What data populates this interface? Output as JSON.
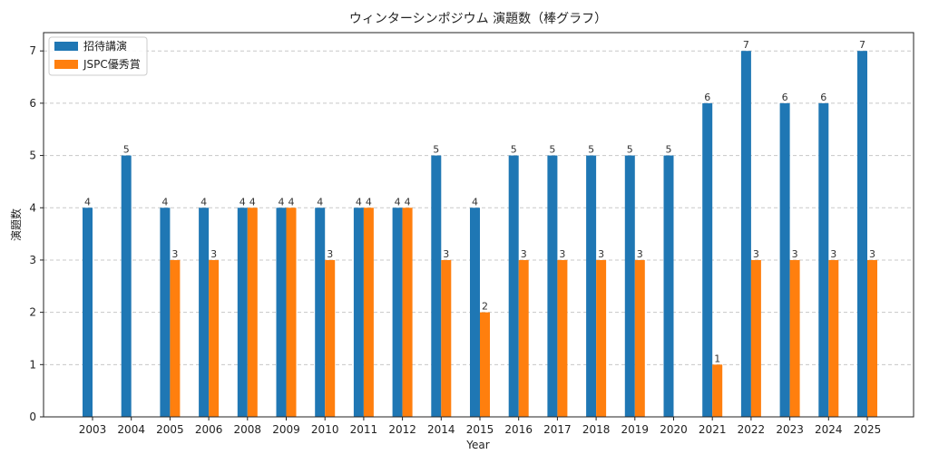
{
  "chart_data": {
    "type": "bar",
    "title": "ウィンターシンポジウム 演題数（棒グラフ）",
    "xlabel": "Year",
    "ylabel": "演題数",
    "ylim": [
      0,
      7.35
    ],
    "yticks": [
      "0",
      "1",
      "2",
      "3",
      "4",
      "5",
      "6",
      "7"
    ],
    "grid": true,
    "legend_position": "top-left",
    "categories": [
      "2003",
      "2004",
      "2005",
      "2006",
      "2008",
      "2009",
      "2010",
      "2011",
      "2012",
      "2014",
      "2015",
      "2016",
      "2017",
      "2018",
      "2019",
      "2020",
      "2021",
      "2022",
      "2023",
      "2024",
      "2025"
    ],
    "series": [
      {
        "name": "招待講演",
        "color": "#1f77b4",
        "values": [
          4,
          5,
          4,
          4,
          4,
          4,
          4,
          4,
          4,
          5,
          4,
          5,
          5,
          5,
          5,
          5,
          6,
          7,
          6,
          6,
          7
        ]
      },
      {
        "name": "JSPC優秀賞",
        "color": "#ff7f0e",
        "values": [
          null,
          null,
          3,
          3,
          4,
          4,
          3,
          4,
          4,
          3,
          2,
          3,
          3,
          3,
          3,
          null,
          1,
          3,
          3,
          3,
          3
        ]
      }
    ]
  }
}
